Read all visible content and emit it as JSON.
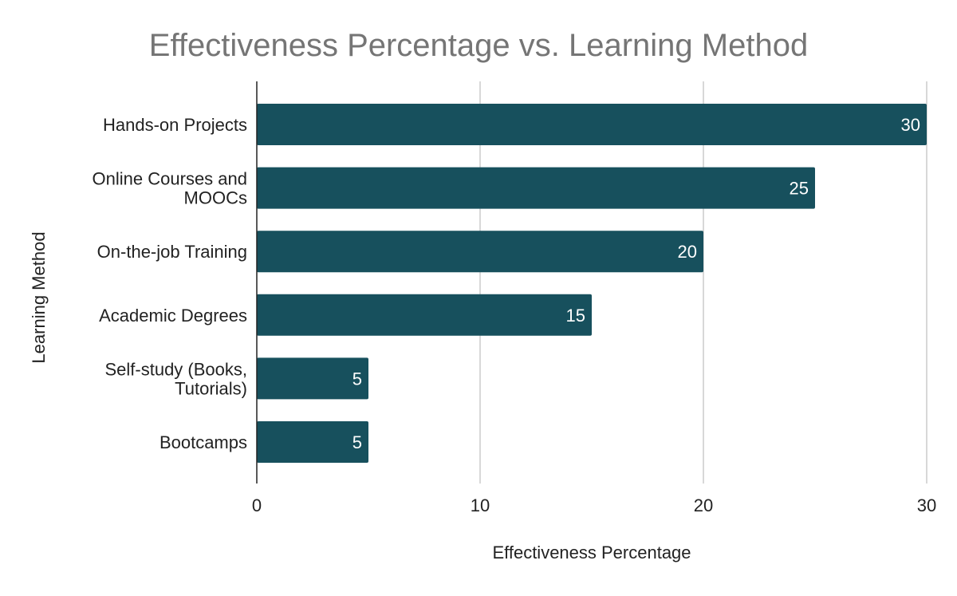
{
  "chart_data": {
    "type": "bar",
    "orientation": "horizontal",
    "title": "Effectiveness Percentage vs. Learning Method",
    "xlabel": "Effectiveness Percentage",
    "ylabel": "Learning Method",
    "categories": [
      [
        "Hands-on Projects"
      ],
      [
        "Online Courses and",
        "MOOCs"
      ],
      [
        "On-the-job Training"
      ],
      [
        "Academic Degrees"
      ],
      [
        "Self-study (Books,",
        "Tutorials)"
      ],
      [
        "Bootcamps"
      ]
    ],
    "values": [
      30,
      25,
      20,
      15,
      5,
      5
    ],
    "data_labels": [
      "30",
      "25",
      "20",
      "15",
      "5",
      "5"
    ],
    "xlim": [
      0,
      30
    ],
    "x_ticks": [
      0,
      10,
      20,
      30
    ],
    "x_tick_labels": [
      "0",
      "10",
      "20",
      "30"
    ],
    "grid": "vertical",
    "legend": "none",
    "bar_color": "#17505d",
    "grid_color": "#cccccc",
    "axis_color": "#222222",
    "title_color": "#757575"
  }
}
